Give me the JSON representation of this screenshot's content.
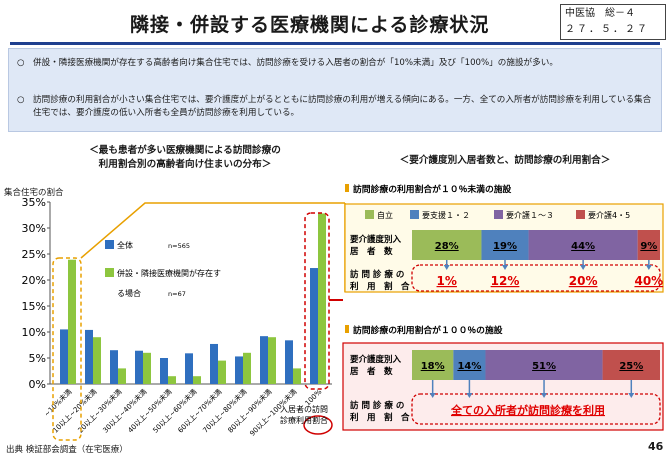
{
  "header": {
    "title": "隣接・併設する医療機関による診療状況",
    "ref_line1": "中医協　総－４",
    "ref_line2": "２７．５．２７"
  },
  "summary": {
    "bullets": [
      {
        "marker": "○",
        "text": "併設・隣接医療機関が存在する高齢者向け集合住宅では、訪問診療を受ける入居者の割合が「10%未満」及び「100%」の施設が多い。"
      },
      {
        "marker": "○",
        "text": "訪問診療の利用割合が小さい集合住宅では、要介護度が上がるとともに訪問診療の利用が増える傾向にある。一方、全ての入所者が訪問診療を利用している集合住宅では、要介護度の低い入所者も全員が訪問診療を利用している。"
      }
    ]
  },
  "left_panel": {
    "title_line1": "＜最も患者が多い医療機関による訪問診療の",
    "title_line2": "利用割合別の高齢者向け住まいの分布＞",
    "y_axis_label": "集合住宅の割合",
    "highlight_note_line1": "入居者の訪問",
    "highlight_note_line2": "診療利用割合"
  },
  "chart_data": {
    "type": "bar",
    "categories": [
      "~10%未満",
      "10以上~20%未満",
      "20以上~30%未満",
      "30以上~40%未満",
      "40以上~50%未満",
      "50以上~60%未満",
      "60以上~70%未満",
      "70以上~80%未満",
      "80以上~90%未満",
      "90以上~100%未満",
      "100%"
    ],
    "series": [
      {
        "name": "全体",
        "n": "n=565",
        "color": "#2f6fbf",
        "values": [
          10.5,
          10.4,
          6.5,
          6.4,
          5.0,
          5.9,
          7.7,
          5.3,
          9.2,
          8.4,
          22.3
        ]
      },
      {
        "name_line1": "併設・隣接医療機関が存在す",
        "name_line2": "る場合",
        "n": "n=67",
        "color": "#8dc63f",
        "values": [
          23.9,
          9.0,
          3.0,
          6.0,
          1.5,
          1.5,
          4.5,
          6.0,
          9.0,
          3.0,
          32.8
        ]
      }
    ],
    "y_ticks": [
      "0%",
      "5%",
      "10%",
      "15%",
      "20%",
      "25%",
      "30%",
      "35%"
    ],
    "ylim": [
      0,
      35
    ],
    "grid": false,
    "legend_position": "inside-upper-left"
  },
  "right_panel": {
    "title": "＜要介護度別入居者数と、訪問診療の利用割合＞",
    "legend": [
      {
        "label": "自立",
        "color": "#9bbb59"
      },
      {
        "label": "要支援１・２",
        "color": "#4f81bd"
      },
      {
        "label": "要介護１～３",
        "color": "#8064a2"
      },
      {
        "label": "要介護4・5",
        "color": "#c0504d"
      }
    ],
    "low_section": {
      "title": "訪問診療の利用割合が１０％未満の施設",
      "row1_label_line1": "要介護度別入",
      "row1_label_line2": "居　者　数",
      "row2_label_line1": "訪 問 診 療 の",
      "row2_label_line2": "利　用　割　合",
      "distribution": [
        {
          "label": "28%",
          "value": 28
        },
        {
          "label": "19%",
          "value": 19
        },
        {
          "label": "44%",
          "value": 44
        },
        {
          "label": "9%",
          "value": 9
        }
      ],
      "usage": [
        "1%",
        "12%",
        "20%",
        "40%"
      ]
    },
    "full_section": {
      "title": "訪問診療の利用割合が１００％の施設",
      "row1_label_line1": "要介護度別入",
      "row1_label_line2": "居　者　数",
      "row2_label_line1": "訪 問 診 療 の",
      "row2_label_line2": "利　用　割　合",
      "distribution": [
        {
          "label": "18%",
          "value": 18
        },
        {
          "label": "14%",
          "value": 14
        },
        {
          "label": "51%",
          "value": 51
        },
        {
          "label": "25%",
          "value": 25
        }
      ],
      "usage_text": "全ての入所者が訪問診療を利用"
    }
  },
  "footer": {
    "source": "出典 検証部会調査（在宅医療）",
    "page": "46"
  }
}
